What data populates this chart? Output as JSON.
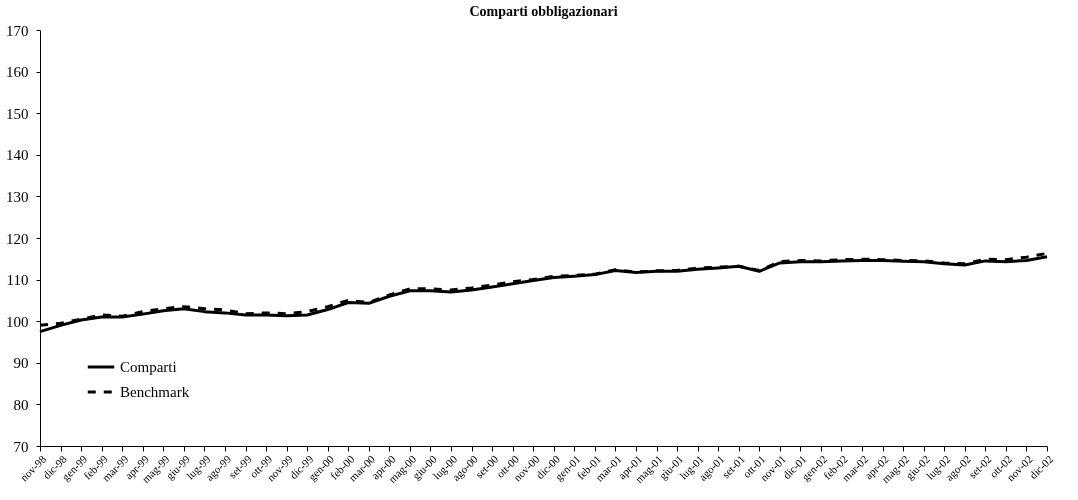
{
  "chart_data": {
    "type": "line",
    "title": "Comparti obbligazionari",
    "categories": [
      "nov-98",
      "dic-98",
      "gen-99",
      "feb-99",
      "mar-99",
      "apr-99",
      "mag-99",
      "giu-99",
      "lug-99",
      "ago-99",
      "set-99",
      "ott-99",
      "nov-99",
      "dic-99",
      "gen-00",
      "feb-00",
      "mar-00",
      "apr-00",
      "mag-00",
      "giu-00",
      "lug-00",
      "ago-00",
      "set-00",
      "ott-00",
      "nov-00",
      "dic-00",
      "gen-01",
      "feb-01",
      "mar-01",
      "apr-01",
      "mag-01",
      "giu-01",
      "lug-01",
      "ago-01",
      "set-01",
      "ott-01",
      "nov-01",
      "dic-01",
      "gen-02",
      "feb-02",
      "mar-02",
      "apr-02",
      "mag-02",
      "giu-02",
      "lug-02",
      "ago-02",
      "set-02",
      "ott-02",
      "nov-02",
      "dic-02"
    ],
    "series": [
      {
        "name": "Comparti",
        "color": "#000000",
        "line_style": "solid",
        "values": [
          97.5,
          99,
          100.3,
          101,
          101,
          101.7,
          102.5,
          103,
          102.3,
          102,
          101.5,
          101.5,
          101.3,
          101.5,
          102.8,
          104.5,
          104.3,
          106,
          107.3,
          107.3,
          107,
          107.5,
          108.2,
          109,
          109.8,
          110.5,
          110.8,
          111.2,
          112.2,
          111.7,
          112,
          112,
          112.5,
          112.8,
          113.2,
          112,
          114,
          114.3,
          114.3,
          114.5,
          114.6,
          114.6,
          114.4,
          114.3,
          113.8,
          113.5,
          114.5,
          114.3,
          114.6,
          115.5
        ]
      },
      {
        "name": "Benchmark",
        "color": "#000000",
        "line_style": "dashed",
        "values": [
          99,
          99.5,
          100.5,
          101.5,
          101.2,
          102.3,
          103,
          103.5,
          103,
          102.7,
          101.8,
          102,
          101.8,
          102.3,
          103.5,
          105,
          104.5,
          106.3,
          107.8,
          107.8,
          107.5,
          108,
          108.7,
          109.5,
          110,
          110.8,
          111,
          111.3,
          112.4,
          111.8,
          112.1,
          112.2,
          112.8,
          113,
          113.2,
          112.2,
          114.3,
          114.6,
          114.5,
          114.8,
          114.9,
          114.8,
          114.6,
          114.5,
          114,
          113.8,
          114.9,
          114.8,
          115.4,
          116.3
        ]
      }
    ],
    "ylim": [
      70,
      170
    ],
    "yticks": [
      70,
      80,
      90,
      100,
      110,
      120,
      130,
      140,
      150,
      160,
      170
    ],
    "grid": false,
    "legend": "bottom left",
    "marker": "none"
  }
}
